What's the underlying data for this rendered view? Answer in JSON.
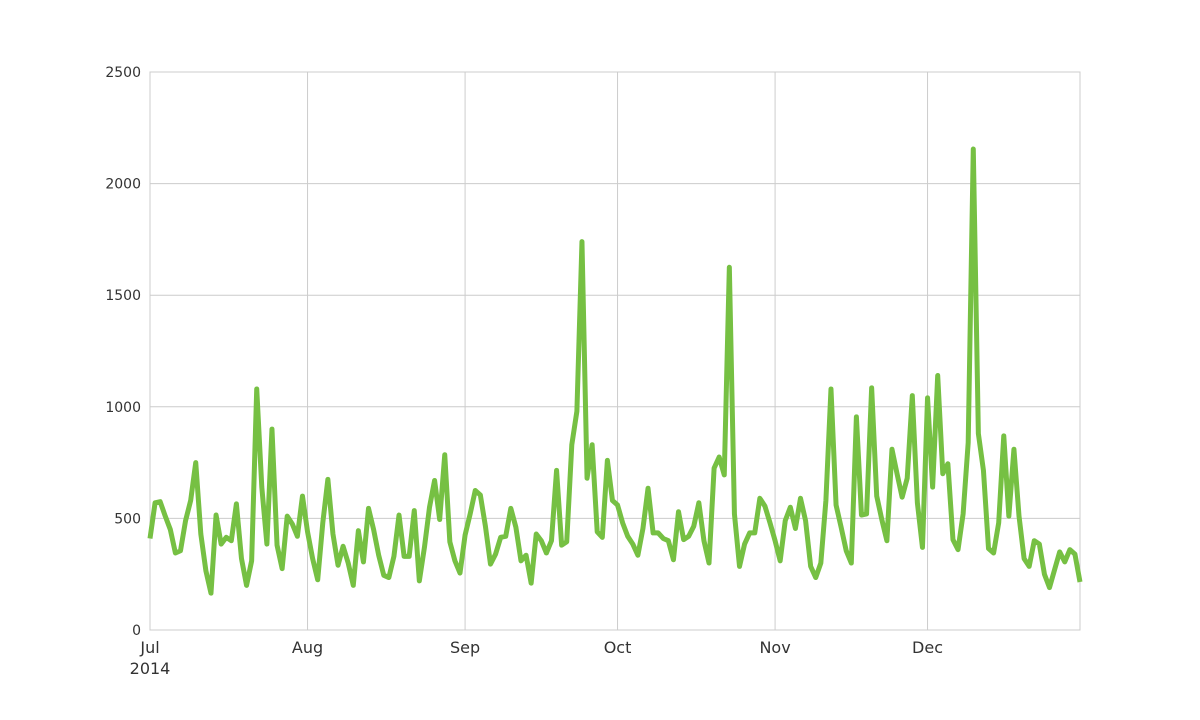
{
  "chart_data": {
    "type": "line",
    "title": "",
    "xlabel": "",
    "ylabel": "",
    "xlim": [
      "2014-07-01",
      "2014-12-31"
    ],
    "ylim": [
      0,
      2500
    ],
    "grid": true,
    "legend": "none",
    "colors": {
      "line": "#76c043",
      "grid": "#cccccc",
      "axis": "#cccccc",
      "text": "#333333",
      "background": "#ffffff"
    },
    "y_ticks": [
      {
        "value": 0,
        "label": "0"
      },
      {
        "value": 500,
        "label": "500"
      },
      {
        "value": 1000,
        "label": "1000"
      },
      {
        "value": 1500,
        "label": "1500"
      },
      {
        "value": 2000,
        "label": "2000"
      },
      {
        "value": 2500,
        "label": "2500"
      }
    ],
    "x_ticks": [
      {
        "date": "2014-07-01",
        "label": "Jul"
      },
      {
        "date": "2014-08-01",
        "label": "Aug"
      },
      {
        "date": "2014-09-01",
        "label": "Sep"
      },
      {
        "date": "2014-10-01",
        "label": "Oct"
      },
      {
        "date": "2014-11-01",
        "label": "Nov"
      },
      {
        "date": "2014-12-01",
        "label": "Dec"
      }
    ],
    "year_label": "2014",
    "series": [
      {
        "points": [
          [
            "2014-07-01",
            410
          ],
          [
            "2014-07-02",
            570
          ],
          [
            "2014-07-03",
            575
          ],
          [
            "2014-07-04",
            510
          ],
          [
            "2014-07-05",
            450
          ],
          [
            "2014-07-06",
            345
          ],
          [
            "2014-07-07",
            355
          ],
          [
            "2014-07-08",
            490
          ],
          [
            "2014-07-09",
            580
          ],
          [
            "2014-07-10",
            750
          ],
          [
            "2014-07-11",
            430
          ],
          [
            "2014-07-12",
            265
          ],
          [
            "2014-07-13",
            165
          ],
          [
            "2014-07-14",
            515
          ],
          [
            "2014-07-15",
            385
          ],
          [
            "2014-07-16",
            415
          ],
          [
            "2014-07-17",
            400
          ],
          [
            "2014-07-18",
            565
          ],
          [
            "2014-07-19",
            320
          ],
          [
            "2014-07-20",
            200
          ],
          [
            "2014-07-21",
            310
          ],
          [
            "2014-07-22",
            1080
          ],
          [
            "2014-07-23",
            640
          ],
          [
            "2014-07-24",
            385
          ],
          [
            "2014-07-25",
            900
          ],
          [
            "2014-07-26",
            380
          ],
          [
            "2014-07-27",
            275
          ],
          [
            "2014-07-28",
            510
          ],
          [
            "2014-07-29",
            475
          ],
          [
            "2014-07-30",
            420
          ],
          [
            "2014-07-31",
            600
          ],
          [
            "2014-08-01",
            440
          ],
          [
            "2014-08-02",
            320
          ],
          [
            "2014-08-03",
            225
          ],
          [
            "2014-08-04",
            480
          ],
          [
            "2014-08-05",
            675
          ],
          [
            "2014-08-06",
            430
          ],
          [
            "2014-08-07",
            290
          ],
          [
            "2014-08-08",
            375
          ],
          [
            "2014-08-09",
            300
          ],
          [
            "2014-08-10",
            200
          ],
          [
            "2014-08-11",
            445
          ],
          [
            "2014-08-12",
            305
          ],
          [
            "2014-08-13",
            545
          ],
          [
            "2014-08-14",
            450
          ],
          [
            "2014-08-15",
            335
          ],
          [
            "2014-08-16",
            245
          ],
          [
            "2014-08-17",
            235
          ],
          [
            "2014-08-18",
            330
          ],
          [
            "2014-08-19",
            515
          ],
          [
            "2014-08-20",
            330
          ],
          [
            "2014-08-21",
            330
          ],
          [
            "2014-08-22",
            535
          ],
          [
            "2014-08-23",
            220
          ],
          [
            "2014-08-24",
            370
          ],
          [
            "2014-08-25",
            550
          ],
          [
            "2014-08-26",
            670
          ],
          [
            "2014-08-27",
            495
          ],
          [
            "2014-08-28",
            785
          ],
          [
            "2014-08-29",
            395
          ],
          [
            "2014-08-30",
            310
          ],
          [
            "2014-08-31",
            255
          ],
          [
            "2014-09-01",
            425
          ],
          [
            "2014-09-02",
            520
          ],
          [
            "2014-09-03",
            625
          ],
          [
            "2014-09-04",
            605
          ],
          [
            "2014-09-05",
            465
          ],
          [
            "2014-09-06",
            295
          ],
          [
            "2014-09-07",
            340
          ],
          [
            "2014-09-08",
            415
          ],
          [
            "2014-09-09",
            420
          ],
          [
            "2014-09-10",
            545
          ],
          [
            "2014-09-11",
            460
          ],
          [
            "2014-09-12",
            310
          ],
          [
            "2014-09-13",
            335
          ],
          [
            "2014-09-14",
            210
          ],
          [
            "2014-09-15",
            430
          ],
          [
            "2014-09-16",
            400
          ],
          [
            "2014-09-17",
            345
          ],
          [
            "2014-09-18",
            400
          ],
          [
            "2014-09-19",
            715
          ],
          [
            "2014-09-20",
            380
          ],
          [
            "2014-09-21",
            395
          ],
          [
            "2014-09-22",
            830
          ],
          [
            "2014-09-23",
            980
          ],
          [
            "2014-09-24",
            1740
          ],
          [
            "2014-09-25",
            680
          ],
          [
            "2014-09-26",
            830
          ],
          [
            "2014-09-27",
            440
          ],
          [
            "2014-09-28",
            415
          ],
          [
            "2014-09-29",
            760
          ],
          [
            "2014-09-30",
            580
          ],
          [
            "2014-10-01",
            560
          ],
          [
            "2014-10-02",
            480
          ],
          [
            "2014-10-03",
            420
          ],
          [
            "2014-10-04",
            385
          ],
          [
            "2014-10-05",
            335
          ],
          [
            "2014-10-06",
            455
          ],
          [
            "2014-10-07",
            635
          ],
          [
            "2014-10-08",
            435
          ],
          [
            "2014-10-09",
            435
          ],
          [
            "2014-10-10",
            410
          ],
          [
            "2014-10-11",
            400
          ],
          [
            "2014-10-12",
            315
          ],
          [
            "2014-10-13",
            530
          ],
          [
            "2014-10-14",
            405
          ],
          [
            "2014-10-15",
            420
          ],
          [
            "2014-10-16",
            465
          ],
          [
            "2014-10-17",
            570
          ],
          [
            "2014-10-18",
            400
          ],
          [
            "2014-10-19",
            300
          ],
          [
            "2014-10-20",
            725
          ],
          [
            "2014-10-21",
            775
          ],
          [
            "2014-10-22",
            695
          ],
          [
            "2014-10-23",
            1625
          ],
          [
            "2014-10-24",
            520
          ],
          [
            "2014-10-25",
            285
          ],
          [
            "2014-10-26",
            385
          ],
          [
            "2014-10-27",
            435
          ],
          [
            "2014-10-28",
            435
          ],
          [
            "2014-10-29",
            590
          ],
          [
            "2014-10-30",
            555
          ],
          [
            "2014-10-31",
            480
          ],
          [
            "2014-11-01",
            400
          ],
          [
            "2014-11-02",
            310
          ],
          [
            "2014-11-03",
            490
          ],
          [
            "2014-11-04",
            550
          ],
          [
            "2014-11-05",
            455
          ],
          [
            "2014-11-06",
            590
          ],
          [
            "2014-11-07",
            490
          ],
          [
            "2014-11-08",
            285
          ],
          [
            "2014-11-09",
            235
          ],
          [
            "2014-11-10",
            300
          ],
          [
            "2014-11-11",
            580
          ],
          [
            "2014-11-12",
            1080
          ],
          [
            "2014-11-13",
            560
          ],
          [
            "2014-11-14",
            460
          ],
          [
            "2014-11-15",
            355
          ],
          [
            "2014-11-16",
            300
          ],
          [
            "2014-11-17",
            955
          ],
          [
            "2014-11-18",
            515
          ],
          [
            "2014-11-19",
            520
          ],
          [
            "2014-11-20",
            1085
          ],
          [
            "2014-11-21",
            600
          ],
          [
            "2014-11-22",
            495
          ],
          [
            "2014-11-23",
            400
          ],
          [
            "2014-11-24",
            810
          ],
          [
            "2014-11-25",
            700
          ],
          [
            "2014-11-26",
            595
          ],
          [
            "2014-11-27",
            680
          ],
          [
            "2014-11-28",
            1050
          ],
          [
            "2014-11-29",
            570
          ],
          [
            "2014-11-30",
            370
          ],
          [
            "2014-12-01",
            1040
          ],
          [
            "2014-12-02",
            640
          ],
          [
            "2014-12-03",
            1140
          ],
          [
            "2014-12-04",
            700
          ],
          [
            "2014-12-05",
            745
          ],
          [
            "2014-12-06",
            405
          ],
          [
            "2014-12-07",
            360
          ],
          [
            "2014-12-08",
            520
          ],
          [
            "2014-12-09",
            840
          ],
          [
            "2014-12-10",
            2155
          ],
          [
            "2014-12-11",
            880
          ],
          [
            "2014-12-12",
            715
          ],
          [
            "2014-12-13",
            365
          ],
          [
            "2014-12-14",
            345
          ],
          [
            "2014-12-15",
            480
          ],
          [
            "2014-12-16",
            870
          ],
          [
            "2014-12-17",
            510
          ],
          [
            "2014-12-18",
            810
          ],
          [
            "2014-12-19",
            510
          ],
          [
            "2014-12-20",
            320
          ],
          [
            "2014-12-21",
            285
          ],
          [
            "2014-12-22",
            400
          ],
          [
            "2014-12-23",
            385
          ],
          [
            "2014-12-24",
            250
          ],
          [
            "2014-12-25",
            190
          ],
          [
            "2014-12-26",
            270
          ],
          [
            "2014-12-27",
            350
          ],
          [
            "2014-12-28",
            305
          ],
          [
            "2014-12-29",
            360
          ],
          [
            "2014-12-30",
            340
          ],
          [
            "2014-12-31",
            215
          ]
        ]
      }
    ]
  }
}
